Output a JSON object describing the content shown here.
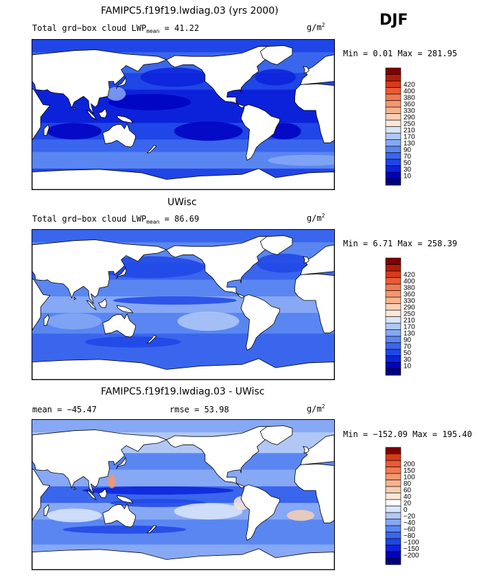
{
  "season": "DJF",
  "colors": {
    "abs_palette": [
      "#000080",
      "#0000bf",
      "#0c22da",
      "#1f46e6",
      "#3a66ee",
      "#5a86f2",
      "#86a8f5",
      "#b1c8f7",
      "#d9e6fa",
      "#fde8d8",
      "#f8cfb5",
      "#f6b390",
      "#f39771",
      "#ef7a52",
      "#ea5a35",
      "#d83b1a",
      "#b01d0a",
      "#800000"
    ],
    "diff_palette": [
      "#000080",
      "#0000bf",
      "#0c22da",
      "#1f46e6",
      "#3a66ee",
      "#5a86f2",
      "#86a8f5",
      "#b1c8f7",
      "#d9e6fa",
      "#ffffff",
      "#fde8d8",
      "#f8cfb5",
      "#f6b390",
      "#f39771",
      "#ef7a52",
      "#ea5a35",
      "#d83b1a",
      "#800000"
    ],
    "land": "#ffffff"
  },
  "panels": [
    {
      "id": "model",
      "title": "FAMIPC5.f19f19.lwdiag.03 (yrs 2000)",
      "label_left": "Total grd−box cloud LWP",
      "label_sub": "mean",
      "label_eq": " =   41.22",
      "units": "g/m",
      "units_sup": "2",
      "minmax": "Min =   0.01 Max = 281.95",
      "legend": {
        "levels": [
          "10",
          "30",
          "50",
          "70",
          "90",
          "130",
          "170",
          "210",
          "250",
          "290",
          "330",
          "360",
          "380",
          "400",
          "420"
        ]
      }
    },
    {
      "id": "obs",
      "title": "UWisc",
      "label_left": "Total grd−box cloud LWP",
      "label_sub": "mean",
      "label_eq": " =   86.69",
      "units": "g/m",
      "units_sup": "2",
      "minmax": "Min =   6.71 Max = 258.39",
      "legend": {
        "levels": [
          "10",
          "30",
          "50",
          "70",
          "90",
          "130",
          "170",
          "210",
          "250",
          "290",
          "330",
          "360",
          "380",
          "400",
          "420"
        ]
      }
    },
    {
      "id": "diff",
      "title": "FAMIPC5.f19f19.lwdiag.03 - UWisc",
      "mean_text": "mean = −45.47",
      "rmse_text": "rmse =   53.98",
      "units": "g/m",
      "units_sup": "2",
      "minmax": "Min = −152.09 Max = 195.40",
      "legend": {
        "levels": [
          "−200",
          "−150",
          "−100",
          "−80",
          "−60",
          "−40",
          "−20",
          "0",
          "20",
          "40",
          "60",
          "80",
          "100",
          "150",
          "200"
        ]
      }
    }
  ]
}
